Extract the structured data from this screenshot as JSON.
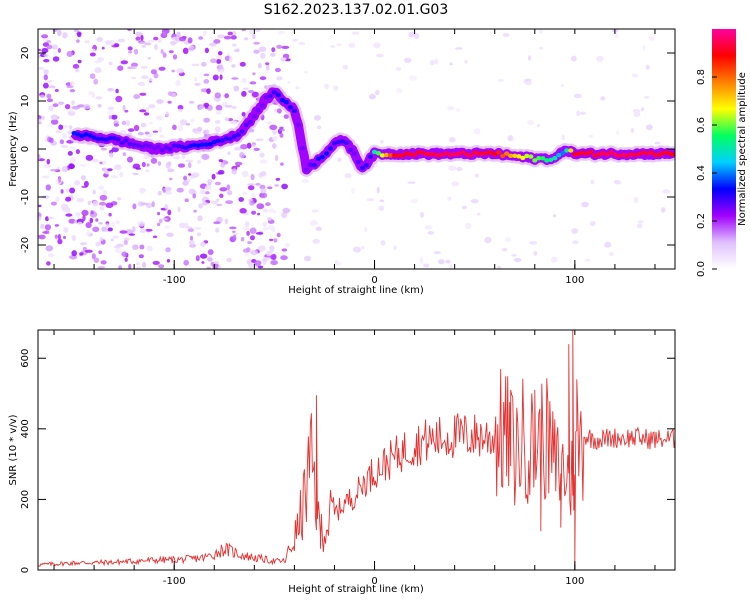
{
  "figure_title": "S162.2023.137.02.01.G03",
  "chart_data": [
    {
      "type": "heatmap",
      "xlabel": "Height of straight line (km)",
      "ylabel": "Frequency (Hz)",
      "xlim": [
        -168,
        150
      ],
      "ylim": [
        -25,
        25
      ],
      "xticks": [
        -100,
        0,
        100
      ],
      "yticks": [
        -20,
        -10,
        0,
        10,
        20
      ],
      "grid": false,
      "colorbar": {
        "label": "Normalized spectral amplitude",
        "range": [
          0,
          1
        ],
        "ticks": [
          0.0,
          0.2,
          0.4,
          0.6,
          0.8
        ],
        "colors": [
          "#ffffff",
          "#e0c0ff",
          "#a000ff",
          "#0000ff",
          "#00d0ff",
          "#00ff60",
          "#ffff00",
          "#ff8000",
          "#ff0000",
          "#ff00a0"
        ]
      },
      "ridge": {
        "x": [
          -150,
          -130,
          -110,
          -95,
          -85,
          -75,
          -68,
          -60,
          -55,
          -50,
          -45,
          -40,
          -38,
          -34,
          -30,
          -25,
          -20,
          -15,
          -10,
          -6,
          -2,
          0,
          10,
          40,
          60,
          70,
          80,
          90,
          93,
          95,
          100,
          120,
          150
        ],
        "y": [
          3,
          2,
          0,
          0.5,
          1,
          2,
          3,
          7,
          10,
          12,
          10,
          8,
          5,
          -4,
          -3,
          -1,
          1,
          2,
          -1,
          -4,
          -2,
          -1,
          -1,
          -1,
          -1,
          -1.5,
          -2,
          -2,
          -1,
          0,
          -1,
          -1,
          -1
        ],
        "amplitude": [
          0.35,
          0.3,
          0.25,
          0.3,
          0.35,
          0.3,
          0.3,
          0.25,
          0.25,
          0.3,
          0.35,
          0.3,
          0.25,
          0.25,
          0.3,
          0.35,
          0.3,
          0.3,
          0.25,
          0.3,
          0.3,
          0.5,
          0.9,
          0.95,
          0.9,
          0.7,
          0.6,
          0.5,
          0.4,
          0.4,
          0.9,
          0.95,
          0.9
        ]
      }
    },
    {
      "type": "line",
      "xlabel": "Height of straight line (km)",
      "ylabel": "SNR (10 * v/v)",
      "xlim": [
        -168,
        150
      ],
      "ylim": [
        0,
        680
      ],
      "xticks": [
        -100,
        0,
        100
      ],
      "yticks": [
        0,
        200,
        400,
        600
      ],
      "grid": false,
      "series": [
        {
          "color": "#e83030",
          "x": [
            -168,
            -150,
            -130,
            -110,
            -95,
            -85,
            -80,
            -75,
            -70,
            -65,
            -60,
            -55,
            -50,
            -45,
            -42,
            -38,
            -35,
            -32,
            -30,
            -28,
            -25,
            -22,
            -18,
            -15,
            -10,
            -5,
            0,
            5,
            10,
            15,
            20,
            25,
            30,
            40,
            50,
            60,
            65,
            70,
            75,
            80,
            85,
            90,
            95,
            98,
            100,
            102,
            105,
            110,
            120,
            130,
            140,
            150
          ],
          "y": [
            15,
            20,
            22,
            28,
            30,
            35,
            45,
            60,
            50,
            40,
            35,
            30,
            25,
            25,
            60,
            120,
            200,
            300,
            250,
            130,
            110,
            150,
            170,
            190,
            210,
            250,
            280,
            300,
            320,
            340,
            355,
            365,
            370,
            380,
            380,
            375,
            390,
            330,
            380,
            340,
            380,
            300,
            280,
            250,
            300,
            360,
            380,
            370,
            375,
            375,
            370,
            372
          ],
          "spikes": [
            {
              "x": -29,
              "y": 495
            },
            {
              "x": -27,
              "y": 60
            },
            {
              "x": 68,
              "y": 510
            },
            {
              "x": 80,
              "y": 510
            },
            {
              "x": 83,
              "y": 110
            },
            {
              "x": 86,
              "y": 540
            },
            {
              "x": 93,
              "y": 120
            },
            {
              "x": 97,
              "y": 640
            },
            {
              "x": 99,
              "y": 680
            },
            {
              "x": 100,
              "y": 10
            },
            {
              "x": 101,
              "y": 540
            }
          ]
        }
      ]
    }
  ]
}
